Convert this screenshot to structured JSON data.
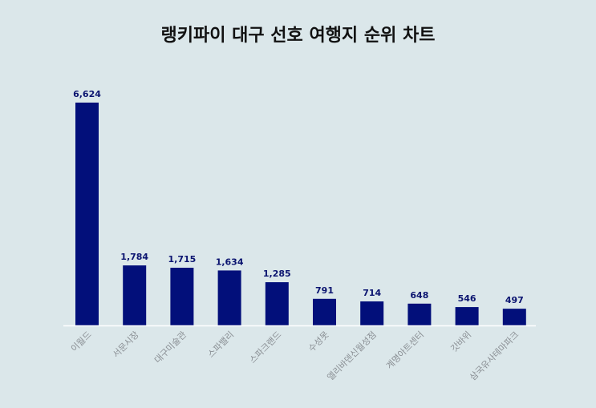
{
  "chart_data": {
    "type": "bar",
    "title": "랭키파이 대구 선호 여행지 순위 차트",
    "categories": [
      "이월드",
      "서문시장",
      "대구미술관",
      "스파밸리",
      "스파크랜드",
      "수성못",
      "엘리바덴신월성점",
      "계명아트센터",
      "갓바위",
      "삼국유사테마파크"
    ],
    "values": [
      6624,
      1784,
      1715,
      1634,
      1285,
      791,
      714,
      648,
      546,
      497
    ],
    "value_labels": [
      "6,624",
      "1,784",
      "1,715",
      "1,634",
      "1,285",
      "791",
      "714",
      "648",
      "546",
      "497"
    ],
    "ylim": [
      0,
      6624
    ],
    "grid": false,
    "legend": "none",
    "colors": {
      "bar": "#020f7a",
      "label": "#0b1470",
      "tick": "#8a8f94",
      "axis": "#ffffff",
      "background": "#dbe7ea"
    }
  }
}
